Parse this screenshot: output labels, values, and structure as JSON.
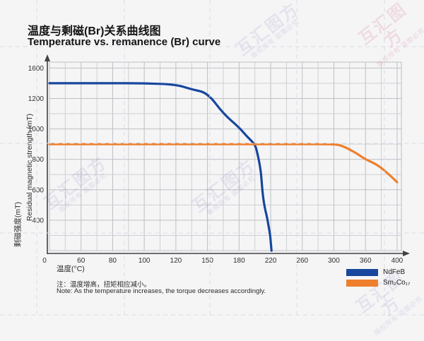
{
  "header": {
    "title_zh": "温度与剩磁(Br)关系曲线图",
    "title_en": "Temperature vs. remanence (Br) curve"
  },
  "watermark": {
    "brand": "互汇图方",
    "notice": "版权所有 盗图必究"
  },
  "chart_data": {
    "type": "line",
    "title": "温度与剩磁(Br)关系曲线图 / Temperature vs. remanence (Br) curve",
    "xlabel": "温度(°C)",
    "ylabel_zh": "剩磁强度(mT)",
    "ylabel_en": "Residual magnetic strength (mT)",
    "x_ticks": [
      0,
      60,
      80,
      100,
      120,
      150,
      180,
      220,
      260,
      300,
      360,
      400
    ],
    "y_ticks": [
      0,
      400,
      600,
      800,
      1000,
      1200,
      1600
    ],
    "origin_label": "0",
    "axis_style": "ticks evenly spaced (non-linear value scale)",
    "grid": "major and minor gridlines on",
    "legend_position": "bottom-right",
    "series": [
      {
        "name": "NdFeB",
        "color": "#17479d",
        "points": [
          [
            0,
            1400
          ],
          [
            60,
            1400
          ],
          [
            80,
            1400
          ],
          [
            100,
            1400
          ],
          [
            120,
            1385
          ],
          [
            135,
            1320
          ],
          [
            150,
            1275
          ],
          [
            165,
            1100
          ],
          [
            180,
            1010
          ],
          [
            190,
            950
          ],
          [
            200,
            900
          ],
          [
            203,
            845
          ],
          [
            206,
            770
          ],
          [
            208,
            700
          ],
          [
            210,
            560
          ],
          [
            213,
            470
          ],
          [
            215,
            430
          ],
          [
            217,
            340
          ],
          [
            219,
            230
          ],
          [
            220,
            130
          ],
          [
            221,
            0
          ]
        ]
      },
      {
        "name": "Sm₂Co₁₇",
        "color": "#ee7f2d",
        "points": [
          [
            0,
            900
          ],
          [
            60,
            900
          ],
          [
            120,
            900
          ],
          [
            200,
            900
          ],
          [
            260,
            900
          ],
          [
            300,
            900
          ],
          [
            315,
            890
          ],
          [
            330,
            865
          ],
          [
            345,
            835
          ],
          [
            360,
            800
          ],
          [
            375,
            765
          ],
          [
            390,
            700
          ],
          [
            400,
            650
          ]
        ]
      }
    ]
  },
  "legend": {
    "items": [
      {
        "label": "NdFeB",
        "color": "#17479d"
      },
      {
        "label": "Sm₂Co₁₇",
        "color": "#ee7f2d"
      }
    ]
  },
  "note": {
    "zh": "注：温度增高，扭矩相应减小。",
    "en": "Note: As the temperature increases, the torque decreases accordingly."
  }
}
